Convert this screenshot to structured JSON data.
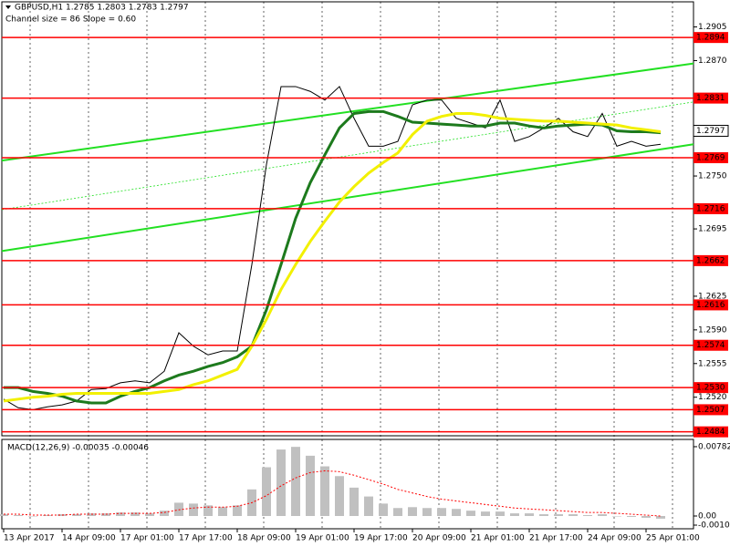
{
  "chart_data": [
    {
      "type": "line",
      "title": "GBPUSD,H1  1.2785 1.2803 1.2783 1.2797",
      "subtitle": "Channel size = 86 Slope = 0.60",
      "categories": [
        "13 Apr 2017",
        null,
        null,
        null,
        "14 Apr 09:00",
        null,
        null,
        null,
        "17 Apr 01:00",
        null,
        null,
        null,
        "17 Apr 17:00",
        null,
        null,
        null,
        "18 Apr 09:00",
        null,
        null,
        null,
        "19 Apr 01:00",
        null,
        null,
        null,
        "19 Apr 17:00",
        null,
        null,
        null,
        "20 Apr 09:00",
        null,
        null,
        null,
        "21 Apr 01:00",
        null,
        null,
        null,
        "21 Apr 17:00",
        null,
        null,
        null,
        "24 Apr 09:00",
        null,
        null,
        null,
        "25 Apr 01:00",
        null
      ],
      "ylim": [
        1.2478,
        1.2933
      ],
      "yticks": [
        1.2905,
        {
          "value": 1.287,
          "label": "1.2870"
        },
        {
          "value": 1.275,
          "label": "1.2750"
        },
        1.2695,
        1.2625,
        {
          "value": 1.259,
          "label": "1.2590"
        },
        1.2555,
        {
          "value": 1.252,
          "label": "1.2520"
        }
      ],
      "levels": [
        1.2894,
        1.2831,
        1.2769,
        1.2716,
        1.2662,
        1.2616,
        1.2574,
        {
          "value": 1.253,
          "label": "1.2530"
        },
        1.2507,
        1.2484
      ],
      "level_color": "#ff0000",
      "current_price": 1.2797,
      "channel": {
        "color": "#22e022",
        "upper": [
          1.2766,
          1.2867
        ],
        "lower": [
          1.2672,
          1.2783
        ],
        "middle": [
          1.2715,
          1.2827
        ]
      },
      "series": [
        {
          "color": "#000000",
          "values": [
            1.2518,
            1.2509,
            1.2507,
            1.251,
            1.2512,
            1.2516,
            1.2528,
            1.2529,
            1.2535,
            1.2537,
            1.2535,
            1.2547,
            1.2587,
            1.2573,
            1.2564,
            1.2568,
            1.2568,
            1.2658,
            1.2762,
            1.2843,
            1.2843,
            1.2838,
            1.2829,
            1.2843,
            1.281,
            1.2781,
            1.2781,
            1.2786,
            1.2824,
            1.2829,
            1.2829,
            1.281,
            1.2805,
            1.28,
            1.2829,
            1.2786,
            1.2791,
            1.28,
            1.281,
            1.2796,
            1.2791,
            1.2815,
            1.2781,
            1.2786,
            1.2781,
            1.2783
          ]
        },
        {
          "color": "#1d7a1d",
          "values": [
            1.253,
            1.253,
            1.2526,
            1.2524,
            1.2521,
            1.2516,
            1.2514,
            1.2514,
            1.2521,
            1.2526,
            1.253,
            1.2537,
            1.2543,
            1.2547,
            1.2552,
            1.2556,
            1.2562,
            1.2573,
            1.2611,
            1.2658,
            1.2706,
            1.2743,
            1.2772,
            1.28,
            1.2815,
            1.2817,
            1.2817,
            1.2812,
            1.2806,
            1.2805,
            1.2804,
            1.2803,
            1.2802,
            1.2802,
            1.2805,
            1.2805,
            1.2802,
            1.28,
            1.2802,
            1.2803,
            1.2804,
            1.2803,
            1.2797,
            1.2796,
            1.2796,
            1.2795
          ]
        },
        {
          "color": "#f2f000",
          "values": [
            1.2516,
            1.2518,
            1.252,
            1.2521,
            1.2523,
            1.2524,
            1.2524,
            1.2524,
            1.2524,
            1.2524,
            1.2524,
            1.2526,
            1.2528,
            1.2533,
            1.2537,
            1.2543,
            1.2549,
            1.2573,
            1.2601,
            1.2632,
            1.2658,
            1.2682,
            1.2703,
            1.2723,
            1.2739,
            1.2753,
            1.2764,
            1.2774,
            1.2793,
            1.2807,
            1.2812,
            1.2815,
            1.2815,
            1.2813,
            1.281,
            1.2809,
            1.2808,
            1.2807,
            1.2807,
            1.2806,
            1.2805,
            1.2804,
            1.2803,
            1.28,
            1.2798,
            1.2796
          ]
        }
      ]
    },
    {
      "type": "macd",
      "title": "MACD(12,26,9) -0.00035 -0.00046",
      "ylim": [
        -0.00144,
        0.00864
      ],
      "yticks": [
        0.00782,
        {
          "value": 0,
          "label": "0.00"
        },
        -0.00103
      ],
      "series": [
        {
          "color": "#c0c0c0",
          "values": [
            0.0002,
            0.0001,
            0.0,
            0.0001,
            0.0002,
            0.0002,
            0.0003,
            0.0003,
            0.0004,
            0.0004,
            0.0003,
            0.0006,
            0.0015,
            0.0014,
            0.0012,
            0.001,
            0.0012,
            0.003,
            0.0055,
            0.0075,
            0.0078,
            0.0068,
            0.0056,
            0.0045,
            0.0032,
            0.0022,
            0.0014,
            0.0009,
            0.001,
            0.0009,
            0.0009,
            0.0008,
            0.0006,
            0.0005,
            0.0005,
            0.0003,
            0.0003,
            0.0002,
            0.0002,
            0.0002,
            0.0001,
            0.0002,
            0.0,
            -0.0001,
            -0.0002,
            -0.0003
          ]
        },
        {
          "color": "#ff0000",
          "values": [
            0.0002,
            0.0002,
            0.0001,
            0.0001,
            0.0001,
            0.0002,
            0.0002,
            0.0002,
            0.0003,
            0.0003,
            0.0003,
            0.0004,
            0.0007,
            0.0009,
            0.001,
            0.001,
            0.0011,
            0.0015,
            0.0023,
            0.0034,
            0.0043,
            0.0049,
            0.0051,
            0.005,
            0.0046,
            0.0041,
            0.0036,
            0.003,
            0.0026,
            0.0022,
            0.0019,
            0.0017,
            0.0015,
            0.0013,
            0.0011,
            0.0009,
            0.0008,
            0.0007,
            0.0006,
            0.0005,
            0.0004,
            0.0004,
            0.0003,
            0.0002,
            0.0001,
            0.0
          ]
        }
      ]
    }
  ]
}
